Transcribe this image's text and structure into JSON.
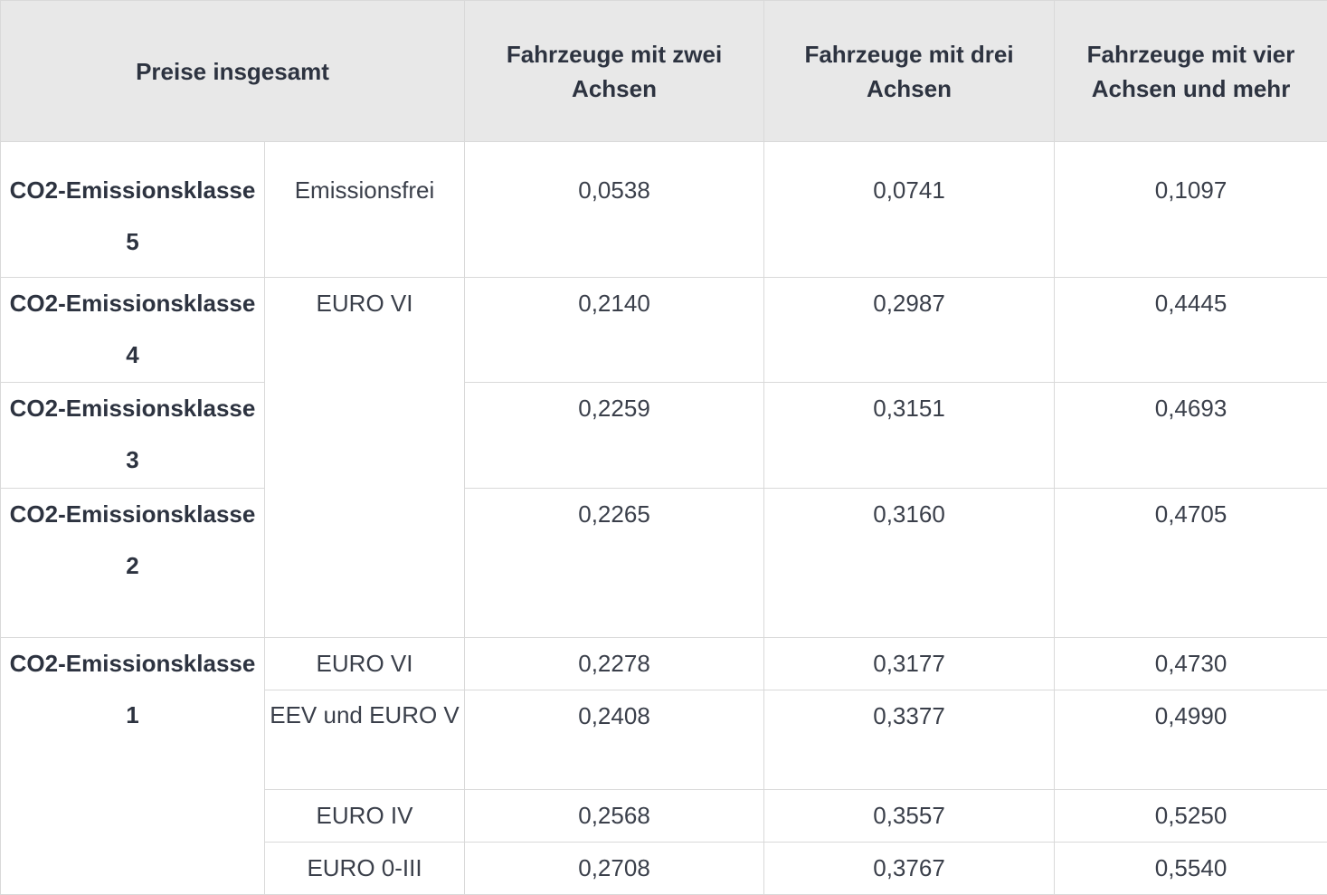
{
  "table": {
    "headers": {
      "total": "Preise insgesamt",
      "two_axles": "Fahrzeuge mit zwei Achsen",
      "three_axles": "Fahrzeuge mit drei Achsen",
      "four_axles": "Fahrzeuge mit vier Achsen und mehr"
    },
    "classes": {
      "c5": "CO2-Emissionsklasse 5",
      "c4": "CO2-Emissionsklasse 4",
      "c3": "CO2-Emissionsklasse 3",
      "c2": "CO2-Emissionsklasse 2",
      "c1": "CO2-Emissionsklasse 1"
    },
    "rows": [
      {
        "norm": "Emissionsfrei",
        "v2": "0,0538",
        "v3": "0,0741",
        "v4": "0,1097"
      },
      {
        "norm": "EURO VI",
        "v2": "0,2140",
        "v3": "0,2987",
        "v4": "0,4445"
      },
      {
        "v2": "0,2259",
        "v3": "0,3151",
        "v4": "0,4693"
      },
      {
        "v2": "0,2265",
        "v3": "0,3160",
        "v4": "0,4705"
      },
      {
        "norm": "EURO VI",
        "v2": "0,2278",
        "v3": "0,3177",
        "v4": "0,4730"
      },
      {
        "norm": "EEV und EURO V",
        "v2": "0,2408",
        "v3": "0,3377",
        "v4": "0,4990"
      },
      {
        "norm": "EURO IV",
        "v2": "0,2568",
        "v3": "0,3557",
        "v4": "0,5250"
      },
      {
        "norm": "EURO 0-III",
        "v2": "0,2708",
        "v3": "0,3767",
        "v4": "0,5540"
      }
    ]
  }
}
